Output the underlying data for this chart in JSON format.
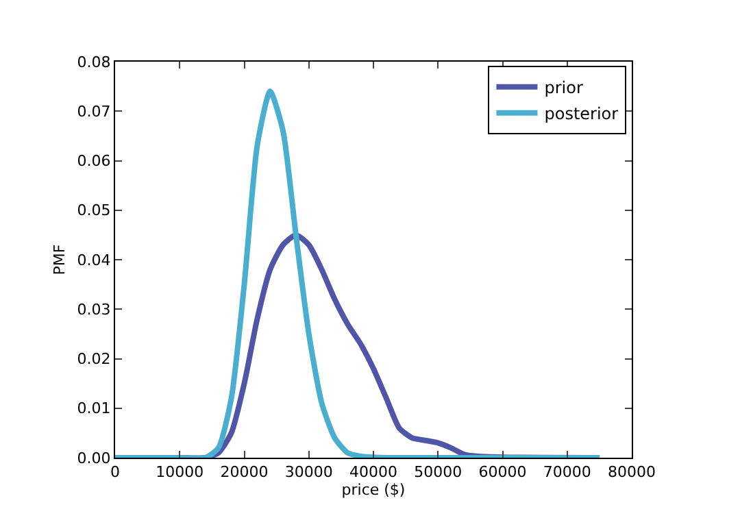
{
  "chart_data": {
    "type": "line",
    "xlabel": "price ($)",
    "ylabel": "PMF",
    "xlim": [
      0,
      80000
    ],
    "xticks": [
      0,
      10000,
      20000,
      30000,
      40000,
      50000,
      60000,
      70000,
      80000
    ],
    "ylim": [
      0,
      0.08
    ],
    "yticks": [
      {
        "value": 0,
        "label": "0.00"
      },
      {
        "value": 0.01,
        "label": "0.01"
      },
      {
        "value": 0.02,
        "label": "0.02"
      },
      {
        "value": 0.03,
        "label": "0.03"
      },
      {
        "value": 0.04,
        "label": "0.04"
      },
      {
        "value": 0.05,
        "label": "0.05"
      },
      {
        "value": 0.06,
        "label": "0.06"
      },
      {
        "value": 0.07,
        "label": "0.07"
      },
      {
        "value": 0.08,
        "label": "0.08"
      }
    ],
    "legend": "top right",
    "marker": "none",
    "line_style": "solid",
    "x": [
      0,
      10000,
      14000,
      16000,
      18000,
      20000,
      22000,
      24000,
      26000,
      28000,
      30000,
      32000,
      34000,
      36000,
      38000,
      40000,
      42000,
      44000,
      46000,
      48000,
      50000,
      52000,
      54000,
      56000,
      60000,
      75000
    ],
    "series": [
      {
        "name": "prior",
        "color": "#5155a8",
        "values": [
          0,
          0,
          0,
          0.001,
          0.005,
          0.015,
          0.028,
          0.038,
          0.043,
          0.045,
          0.043,
          0.038,
          0.032,
          0.027,
          0.023,
          0.018,
          0.012,
          0.006,
          0.004,
          0.0035,
          0.003,
          0.002,
          0.0007,
          0.0003,
          0.0001,
          0
        ]
      },
      {
        "name": "posterior",
        "color": "#4aaed1",
        "values": [
          0,
          0,
          0,
          0.002,
          0.012,
          0.035,
          0.063,
          0.074,
          0.066,
          0.045,
          0.025,
          0.011,
          0.004,
          0.001,
          0.0003,
          0.0001,
          0,
          0,
          0,
          0,
          0,
          0,
          0,
          0,
          0,
          0
        ]
      }
    ]
  }
}
